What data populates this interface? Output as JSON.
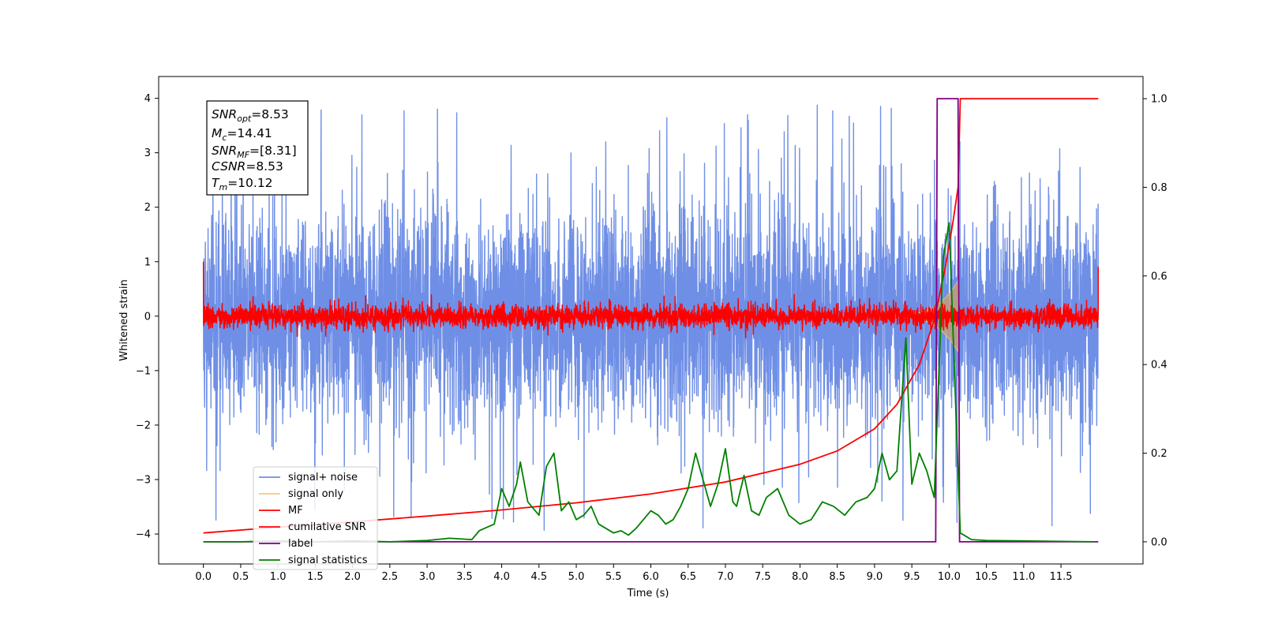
{
  "chart_data": {
    "type": "line",
    "xlabel": "Time (s)",
    "ylabel": "Whitened strain",
    "xlim": [
      -0.6,
      12.6
    ],
    "ylim": [
      -4.55,
      4.4
    ],
    "y2lim": [
      -0.05,
      1.05
    ],
    "x_ticks": [
      "0.0",
      "0.5",
      "1.0",
      "1.5",
      "2.0",
      "2.5",
      "3.0",
      "3.5",
      "4.0",
      "4.5",
      "5.0",
      "5.5",
      "6.0",
      "6.5",
      "7.0",
      "7.5",
      "8.0",
      "8.5",
      "9.0",
      "9.5",
      "10.0",
      "10.5",
      "11.0",
      "11.5"
    ],
    "y_ticks": [
      "4",
      "3",
      "2",
      "1",
      "0",
      "−1",
      "−2",
      "−3",
      "−4"
    ],
    "y2_ticks": [
      "1.0",
      "0.8",
      "0.6",
      "0.4",
      "0.2",
      "0.0"
    ],
    "info_box": {
      "snr_opt": {
        "sym": "SNR",
        "sub": "opt",
        "val": "=8.53"
      },
      "mc": {
        "sym": "M",
        "sub": "c",
        "val": "=14.41"
      },
      "snr_mf": {
        "sym": "SNR",
        "sub": "MF",
        "val": "=[8.31]"
      },
      "csnr": {
        "sym": "CSNR",
        "sub": "",
        "val": "=8.53"
      },
      "tm": {
        "sym": "T",
        "sub": "m",
        "val": "=10.12"
      }
    },
    "legend": {
      "placement": "lower-left",
      "entries": [
        {
          "label": "signal+ noise",
          "color": "#6f8fe6"
        },
        {
          "label": "signal only",
          "color": "#f5c97a"
        },
        {
          "label": "MF",
          "color": "#ff0000"
        },
        {
          "label": "cumilative SNR",
          "color": "#ff0000"
        },
        {
          "label": "label",
          "color": "#800080"
        },
        {
          "label": "signal statistics",
          "color": "#008000"
        }
      ]
    },
    "series": [
      {
        "name": "signal+ noise",
        "axis": "left",
        "x_range": [
          0.0,
          12.0
        ],
        "noise_sd": 0.95,
        "peak_range": [
          -4.0,
          4.0
        ]
      },
      {
        "name": "signal only",
        "axis": "left",
        "x_range": [
          9.3,
          10.12
        ],
        "peak_amplitude": 0.65
      },
      {
        "name": "MF",
        "axis": "left",
        "x_range": [
          0.0,
          12.0
        ],
        "noise_sd": 0.1,
        "x": [
          0.0,
          0.02,
          11.98,
          12.0
        ],
        "y": [
          1.0,
          0.1,
          0.1,
          0.9
        ]
      },
      {
        "name": "cumilative SNR",
        "axis": "right",
        "x": [
          0.0,
          1.0,
          2.0,
          3.0,
          4.0,
          5.0,
          6.0,
          7.0,
          8.0,
          8.5,
          9.0,
          9.3,
          9.6,
          9.8,
          9.95,
          10.05,
          10.12,
          10.15,
          12.0
        ],
        "y": [
          0.02,
          0.033,
          0.045,
          0.058,
          0.072,
          0.088,
          0.108,
          0.135,
          0.175,
          0.205,
          0.255,
          0.31,
          0.4,
          0.5,
          0.62,
          0.72,
          0.8,
          1.0,
          1.0
        ]
      },
      {
        "name": "label",
        "axis": "right",
        "x": [
          0.0,
          9.82,
          9.84,
          10.12,
          10.14,
          12.0
        ],
        "y": [
          0.0,
          0.0,
          1.0,
          1.0,
          0.0,
          0.0
        ]
      },
      {
        "name": "signal statistics",
        "axis": "right",
        "x": [
          0.0,
          0.5,
          1.0,
          1.5,
          2.0,
          2.5,
          3.0,
          3.3,
          3.6,
          3.7,
          3.9,
          4.0,
          4.1,
          4.2,
          4.25,
          4.35,
          4.5,
          4.6,
          4.7,
          4.8,
          4.9,
          5.0,
          5.1,
          5.2,
          5.3,
          5.4,
          5.5,
          5.6,
          5.7,
          5.8,
          5.9,
          6.0,
          6.1,
          6.2,
          6.3,
          6.4,
          6.5,
          6.6,
          6.7,
          6.8,
          6.9,
          7.0,
          7.1,
          7.15,
          7.25,
          7.35,
          7.45,
          7.55,
          7.7,
          7.85,
          8.0,
          8.15,
          8.3,
          8.45,
          8.6,
          8.75,
          8.9,
          9.0,
          9.1,
          9.2,
          9.3,
          9.42,
          9.5,
          9.6,
          9.7,
          9.8,
          9.92,
          10.0,
          10.1,
          10.15,
          10.3,
          10.5,
          11.0,
          11.5,
          11.95
        ],
        "y": [
          0.0,
          0.0,
          0.002,
          0.0,
          0.002,
          0.0,
          0.003,
          0.008,
          0.005,
          0.025,
          0.04,
          0.12,
          0.08,
          0.13,
          0.18,
          0.09,
          0.06,
          0.17,
          0.2,
          0.07,
          0.09,
          0.05,
          0.06,
          0.08,
          0.04,
          0.03,
          0.02,
          0.025,
          0.015,
          0.03,
          0.05,
          0.07,
          0.06,
          0.04,
          0.05,
          0.08,
          0.12,
          0.2,
          0.14,
          0.08,
          0.13,
          0.21,
          0.09,
          0.08,
          0.15,
          0.07,
          0.06,
          0.1,
          0.12,
          0.06,
          0.04,
          0.05,
          0.09,
          0.08,
          0.06,
          0.09,
          0.1,
          0.12,
          0.2,
          0.14,
          0.16,
          0.46,
          0.13,
          0.2,
          0.16,
          0.1,
          0.64,
          0.72,
          0.25,
          0.02,
          0.005,
          0.003,
          0.002,
          0.001,
          0.0
        ]
      }
    ]
  }
}
